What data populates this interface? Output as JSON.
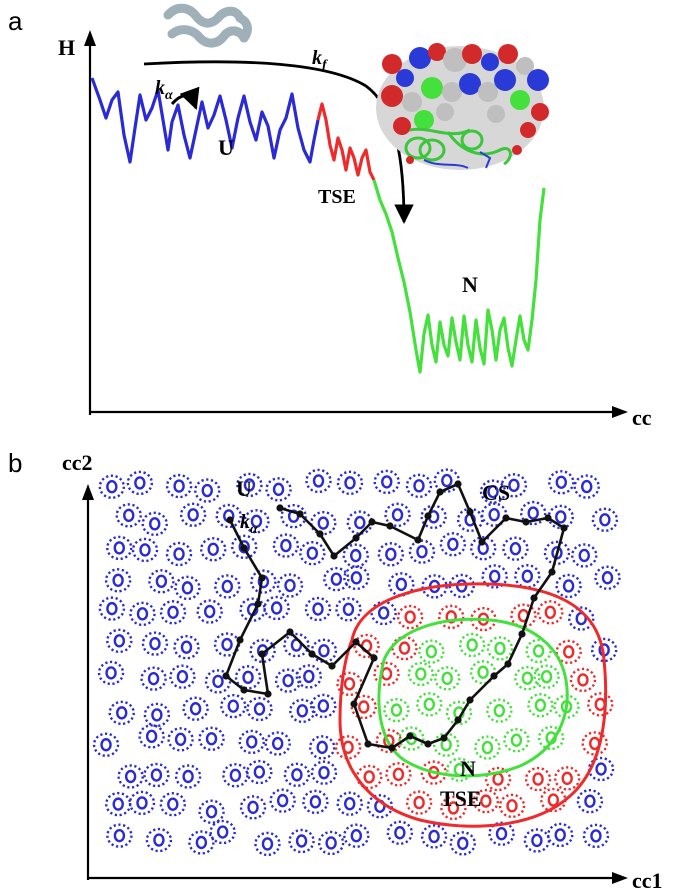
{
  "panel_a": {
    "letter": "a",
    "y_axis_label": "H",
    "x_axis_label": "cc",
    "labels": {
      "unfolded": "U",
      "transition": "TSE",
      "native": "N"
    },
    "rate_alpha": {
      "main": "k",
      "sub": "α"
    },
    "rate_folding": {
      "main": "k",
      "sub": "f"
    }
  },
  "panel_b": {
    "letter": "b",
    "y_axis_label": "cc2",
    "x_axis_label": "cc1",
    "labels": {
      "unfolded": "U",
      "cs": "CS",
      "native": "N",
      "transition": "TSE"
    },
    "rate_alpha": {
      "main": "k",
      "sub": "α"
    }
  },
  "colors": {
    "unfolded": "#2a2ad6",
    "transition": "#ef2a2a",
    "native": "#44e03c",
    "trajectory": "#111111",
    "protein_coil": "#9fb0b8"
  },
  "icons": [
    "unfolded-chain-icon",
    "folded-protein-structure-icon"
  ]
}
